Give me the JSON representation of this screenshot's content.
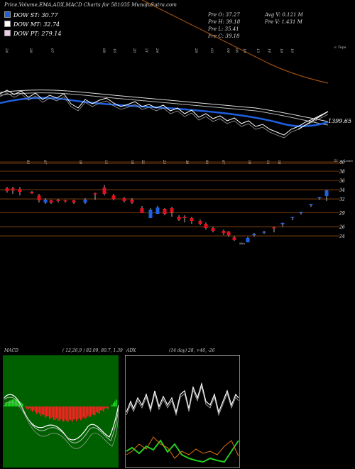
{
  "header": {
    "title": "Price,Volume,EMA,ADX,MACD Charts for 581035 MunafaSutra.com",
    "legend": [
      {
        "label": "DOW ST: 30.77",
        "color": "#2060d0"
      },
      {
        "label": "DOW MT: 32.74",
        "color": "#ffffff"
      },
      {
        "label": "DOW PT: 279.14",
        "color": "#f0c8e8"
      }
    ],
    "prices_col1": [
      "Pre O: 37.27",
      "Pre H: 39.18",
      "Pre L: 35.41",
      "Pre C: 39.18"
    ],
    "prices_col2": [
      "Avg V: 0.121 M",
      "Pre V: 1.431 M"
    ]
  },
  "top_chart": {
    "date_labels": [
      "24",
      "28",
      "07",
      "08",
      "16",
      "20",
      "21",
      "24",
      "28",
      "03",
      "04",
      "06",
      "10",
      "13",
      "14",
      "18",
      "19"
    ],
    "corner_label": "< Tops",
    "price_label": "1399.65",
    "colors": {
      "price": "#ffffff",
      "ema_blue": "#1e60e0",
      "ema_brown": "#a05010",
      "line": "#cccccc"
    }
  },
  "middle_chart": {
    "date_labels": [
      "03",
      "07",
      "10",
      "15",
      "18",
      "22",
      "25",
      "30",
      "04",
      "07",
      "10",
      "14",
      "18"
    ],
    "corner_label": "51 < Lows",
    "price_levels": [
      "40",
      "38",
      "36",
      "34",
      "32",
      "29",
      "26",
      "24"
    ],
    "candle_label": "Min",
    "colors": {
      "up": "#1e60e0",
      "down": "#e01020",
      "grid": "#a05010"
    }
  },
  "macd": {
    "title": "MACD",
    "params": "( 12,26,9 ) 82.09, 80.7, 1.39",
    "colors": {
      "pos": "#20e020",
      "neg": "#ff2020",
      "line": "#ffffff"
    }
  },
  "adx": {
    "title": "ADX",
    "params": "(14 day) 28, +46, -26",
    "colors": {
      "adx": "#ffffff",
      "plus": "#20d020",
      "minus": "#e07010"
    }
  },
  "chart_data": [
    {
      "type": "line",
      "title": "Price,Volume,EMA,ADX,MACD Charts for 581035 MunafaSutra.com",
      "x": [
        "24",
        "28",
        "07",
        "08",
        "16",
        "20",
        "21",
        "24",
        "28",
        "03",
        "04",
        "06",
        "10",
        "13",
        "14",
        "18",
        "19"
      ],
      "series": [],
      "annotations": [
        "1399.65",
        "< Tops"
      ]
    },
    {
      "type": "bar",
      "title": "",
      "categories": [
        "03",
        "07",
        "10",
        "15",
        "18",
        "22",
        "25",
        "30",
        "04",
        "07",
        "10",
        "14",
        "18"
      ],
      "ylabel": "",
      "y_ticks": [
        40,
        38,
        36,
        34,
        32,
        29,
        26,
        24
      ],
      "ylim": [
        22,
        42
      ],
      "annotations": [
        "51 < Lows",
        "Min"
      ],
      "grid": true
    },
    {
      "type": "bar",
      "title": "MACD",
      "subtitle": "( 12,26,9 ) 82.09, 80.7, 1.39",
      "series": [
        {
          "name": "MACD",
          "values": [
            82.09
          ]
        },
        {
          "name": "Signal",
          "values": [
            80.7
          ]
        },
        {
          "name": "Histogram",
          "values": [
            1.39
          ]
        }
      ]
    },
    {
      "type": "line",
      "title": "ADX",
      "subtitle": "(14 day) 28, +46, -26",
      "series": [
        {
          "name": "ADX",
          "values": [
            28
          ]
        },
        {
          "name": "+DI",
          "values": [
            46
          ]
        },
        {
          "name": "-DI",
          "values": [
            26
          ]
        }
      ]
    }
  ]
}
